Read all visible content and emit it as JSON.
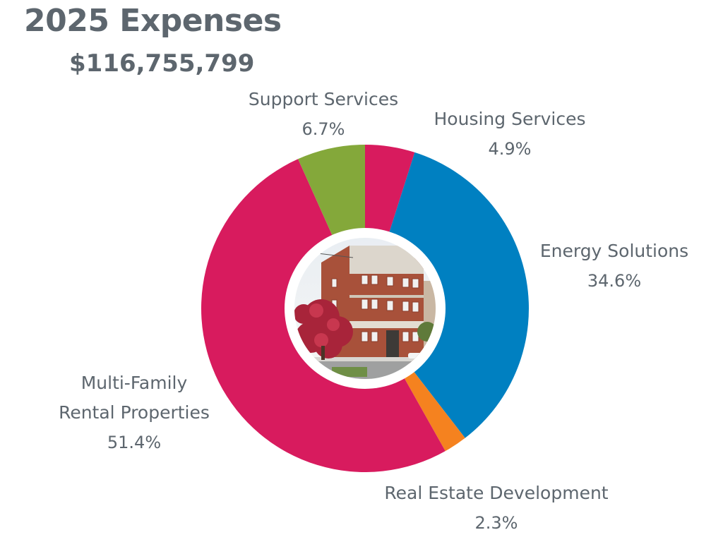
{
  "chart_data": {
    "type": "pie",
    "title": "2025 Expenses",
    "subtitle": "$116,755,799",
    "slices": [
      {
        "label": "Housing Services",
        "label_lines": [
          "Housing Services"
        ],
        "value": 4.9,
        "value_label": "4.9%",
        "color": "#d81b5e"
      },
      {
        "label": "Energy Solutions",
        "label_lines": [
          "Energy Solutions"
        ],
        "value": 34.6,
        "value_label": "34.6%",
        "color": "#0080c1"
      },
      {
        "label": "Real Estate Development",
        "label_lines": [
          "Real Estate Development"
        ],
        "value": 2.3,
        "value_label": "2.3%",
        "color": "#f5821f"
      },
      {
        "label": "Multi-Family Rental Properties",
        "label_lines": [
          "Multi-Family",
          "Rental Properties"
        ],
        "value": 51.4,
        "value_label": "51.4%",
        "color": "#d81b5e"
      },
      {
        "label": "Support Services",
        "label_lines": [
          "Support Services"
        ],
        "value": 6.7,
        "value_label": "6.7%",
        "color": "#84a83a"
      }
    ],
    "center_image": "brick-building-photo"
  }
}
